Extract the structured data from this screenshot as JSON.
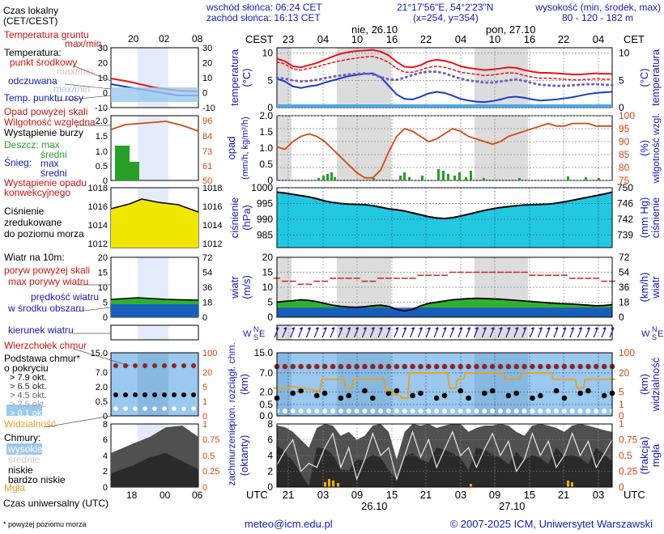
{
  "header": {
    "sunrise": "wschód słońca: 06:24 CET",
    "sunset": "zachód słońca: 16:13 CET",
    "coords": "21°17'56\"E, 54°2'23\"N",
    "grid": "(x=254,  y=354)",
    "altitude_label": "wysokość (min, środek, max)",
    "altitude_values": "80 - 120 - 182 m",
    "legend_time_zone": "Czas lokalny",
    "legend_time_zone_sub": "(CET/CEST)"
  },
  "time_axis": {
    "tz_left": "CEST",
    "tz_right": "CET",
    "top_hours": [
      "23",
      "04",
      "10",
      "16",
      "22",
      "04",
      "10",
      "16",
      "22",
      "04"
    ],
    "day_labels_top": [
      "nie, 26.10",
      "pon, 27.10"
    ],
    "utc_label": "UTC",
    "bottom_hours": [
      "21",
      "03",
      "09",
      "15",
      "21",
      "03",
      "09",
      "15",
      "21",
      "03"
    ],
    "day_labels_bottom": [
      "26.10",
      "27.10"
    ],
    "legend_top_hours": [
      "20",
      "02",
      "08"
    ],
    "legend_bottom_hours": [
      "18",
      "00",
      "06"
    ],
    "legend_utc_title": "Czas uniwersalny (UTC)"
  },
  "legend": {
    "temp_ground": "Temperatura gruntu",
    "temp_ground_sub": "max/min",
    "temp_title": "Temperatura:",
    "temp_mid": "punkt środkowy",
    "temp_maxmin": "max/min",
    "temp_felt": "odczuwana",
    "temp_felt_sub": "max/min",
    "dew": "Temp. punktu rosy",
    "precip_over": "Opad powyżej skali",
    "humidity": "Wilgotność względna",
    "storm": "Wystąpienie burzy",
    "rain": "Deszcz: max",
    "rain_mid": "średni",
    "snow": "Śnieg:",
    "snow_max": "max",
    "snow_mid": "średni",
    "convective": "Wystąpienie opadu",
    "convective_2": "konwekcyjnego",
    "pressure_1": "Ciśnienie",
    "pressure_2": "zredukowane",
    "pressure_3": "do poziomu morza",
    "wind_title": "Wiatr na 10m:",
    "gust_over": "poryw powyżej skali",
    "gust_max": "max porywy wiatru",
    "wind_avg": "prędkość wiatru",
    "wind_avg_2": "w środku obszaru",
    "wind_dir": "kierunek wiatru",
    "cb_top": "Wierzchołek chmur",
    "cloud_base": "Podstawa chmur*",
    "cloud_base_2": "o pokryciu",
    "okt": [
      "> 7.9 okt.",
      "> 6.5 okt.",
      "> 4.5 okt.",
      "> 2.5 okt.",
      "> 0.1 okt."
    ],
    "visibility": "Widzialność",
    "clouds": "Chmury:",
    "cl_high": "wysokie",
    "cl_mid": "średnie",
    "cl_low": "niskie",
    "cl_vlow": "bardzo niskie",
    "fog": "Mgła",
    "footnote": "* powyżej poziomu morza"
  },
  "panel_labels": {
    "temp_left": "temperatura",
    "temp_left_unit": "(°C)",
    "temp_right": "temperatura",
    "temp_right_unit": "(°C)",
    "precip_left": "opad",
    "precip_left_unit": "(mm/h, kg/m²/h)",
    "precip_right": "wilgotność wzgl.",
    "precip_right_unit": "(%)",
    "press_left": "ciśnienie",
    "press_left_unit": "(hPa)",
    "press_right": "ciśnienie",
    "press_right_unit": "(mm Hg)",
    "wind_left": "wiatr",
    "wind_left_unit": "(m/s)",
    "wind_right": "wiatr",
    "wind_right_unit": "(km/h)",
    "dir_left": "WNSE",
    "dir_right": "WNSE",
    "cloud_left": "pion. rozciągł. chm.",
    "cloud_left_unit": "(km)",
    "cloud_right": "widzialność",
    "cloud_right_unit": "(km)",
    "cov_left": "zachmurzenie",
    "cov_left_unit": "(oktanty)",
    "cov_right": "mgła",
    "cov_right_unit": "(frakcja)"
  },
  "footer": {
    "email": "meteo@icm.edu.pl",
    "copyright": "© 2007-2025 ICM, Uniwersytet Warszawski"
  },
  "colors": {
    "temp_red": "#e8141a",
    "temp_blue": "#1e3cc8",
    "dew_purple": "#7060c0",
    "humidity": "#d24a10",
    "rain_green": "#28a028",
    "pressure": "#22c8e0",
    "wind_green": "#30b030",
    "wind_blue": "#1450d2",
    "vis_orange": "#e8a020"
  },
  "chart_data": [
    {
      "type": "line",
      "title": "temperatura",
      "ylabel": "(°C)",
      "ylim": [
        0,
        11
      ],
      "yticks": [
        0,
        5,
        10
      ],
      "series": [
        {
          "name": "temperatura max",
          "values": [
            9.0,
            8.5,
            7.6,
            7.4,
            7.8,
            8.2,
            8.8,
            9.4,
            9.9,
            10.2,
            10.4,
            10.5,
            10.6,
            10.3,
            9.6,
            8.4,
            7.5,
            7.4,
            7.8,
            8.5,
            8.8,
            8.6,
            8.2,
            7.6,
            7.3,
            7.1,
            6.9,
            7.0,
            7.2,
            7.4,
            7.3,
            6.9,
            6.6,
            6.4,
            6.4,
            6.3,
            6.2,
            6.1,
            6.1,
            6.2,
            6.3,
            6.2,
            6.2
          ]
        },
        {
          "name": "punkt środkowy",
          "values": [
            8.4,
            8.0,
            7.1,
            6.9,
            7.2,
            7.5,
            7.9,
            8.3,
            8.6,
            8.9,
            9.1,
            9.3,
            9.4,
            9.0,
            8.3,
            7.2,
            6.5,
            6.5,
            6.9,
            7.4,
            7.6,
            7.4,
            7.0,
            6.5,
            6.3,
            6.1,
            5.9,
            6.0,
            6.2,
            6.4,
            6.3,
            5.9,
            5.6,
            5.4,
            5.4,
            5.3,
            5.2,
            5.1,
            5.1,
            5.2,
            5.3,
            5.2,
            5.2
          ]
        },
        {
          "name": "odczuwana",
          "values": [
            5.3,
            4.8,
            3.9,
            3.6,
            3.9,
            4.1,
            4.6,
            5.0,
            5.4,
            5.8,
            6.0,
            6.2,
            6.3,
            5.6,
            4.0,
            2.4,
            1.6,
            1.5,
            2.0,
            2.6,
            2.9,
            2.7,
            2.2,
            1.6,
            1.3,
            1.1,
            1.0,
            1.2,
            1.5,
            1.9,
            2.0,
            1.8,
            1.5,
            1.3,
            1.4,
            1.5,
            1.7,
            1.9,
            2.2,
            2.5,
            2.7,
            2.8,
            2.9
          ]
        },
        {
          "name": "punkt rosy",
          "values": [
            5.5,
            5.3,
            5.0,
            4.8,
            4.9,
            5.1,
            5.4,
            5.7,
            5.9,
            6.1,
            6.2,
            6.3,
            6.1,
            5.6,
            5.2,
            5.1,
            5.5,
            6.0,
            6.4,
            6.6,
            6.6,
            6.3,
            5.8,
            5.3,
            5.0,
            4.8,
            4.6,
            4.6,
            4.8,
            5.0,
            5.2,
            4.9,
            4.5,
            4.2,
            4.1,
            4.0,
            4.0,
            4.1,
            4.2,
            4.3,
            4.3,
            4.2,
            4.1
          ]
        }
      ]
    },
    {
      "type": "bar",
      "title": "opad",
      "ylabel": "(mm/h, kg/m²/h)",
      "ylim": [
        0,
        2
      ],
      "yticks": [
        0,
        0.5,
        1.0,
        1.5,
        2.0
      ],
      "series": [
        {
          "name": "wilgotność względna",
          "values": [
            88,
            87,
            90,
            92,
            93,
            92,
            90,
            87,
            84,
            81,
            78,
            76,
            76,
            79,
            86,
            92,
            95,
            94,
            92,
            90,
            91,
            93,
            95,
            94,
            92,
            91,
            90,
            89,
            90,
            92,
            93,
            94,
            95,
            96,
            97,
            96,
            96,
            97,
            97,
            97,
            96,
            96,
            96
          ],
          "ylim": [
            75,
            100
          ]
        }
      ]
    },
    {
      "type": "area",
      "title": "ciśnienie",
      "ylabel": "(hPa)",
      "ylim": [
        981,
        1000
      ],
      "yticks": [
        985,
        990,
        995,
        1000
      ],
      "series": [
        {
          "name": "ciśnienie",
          "values": [
            998.6,
            998.3,
            997.9,
            997.5,
            997.1,
            996.5,
            995.8,
            995.3,
            995.0,
            994.8,
            994.7,
            994.6,
            994.3,
            993.8,
            993.3,
            993.0,
            992.6,
            992.0,
            991.4,
            990.8,
            990.4,
            990.2,
            990.5,
            991.0,
            991.6,
            992.2,
            992.8,
            993.3,
            993.7,
            994.0,
            994.3,
            994.5,
            994.6,
            994.7,
            994.8,
            995.1,
            995.5,
            996.0,
            996.5,
            997.0,
            997.5,
            998.0,
            998.6
          ]
        }
      ]
    },
    {
      "type": "line",
      "title": "wiatr",
      "ylabel": "(m/s)",
      "ylim": [
        0,
        20
      ],
      "yticks": [
        0,
        5,
        10,
        15,
        20
      ],
      "series": [
        {
          "name": "max porywy wiatru",
          "values": [
            13,
            12,
            12,
            11,
            11,
            12,
            12,
            13,
            13,
            13,
            13,
            12,
            12,
            13,
            13,
            13,
            13,
            13,
            14,
            14,
            14,
            14,
            15,
            15,
            15,
            15,
            15,
            15,
            15,
            15,
            15,
            15,
            14,
            14,
            14,
            14,
            14,
            13,
            13,
            13,
            13,
            12,
            12
          ]
        },
        {
          "name": "prędkość wiatru",
          "values": [
            5.0,
            5.3,
            5.5,
            5.8,
            5.6,
            5.2,
            4.6,
            4.0,
            3.6,
            3.4,
            3.3,
            3.5,
            3.8,
            4.0,
            3.6,
            2.6,
            2.1,
            2.6,
            3.8,
            4.6,
            5.0,
            5.4,
            5.8,
            6.0,
            6.2,
            6.3,
            6.2,
            6.1,
            6.0,
            5.8,
            5.6,
            5.4,
            5.2,
            5.0,
            4.8,
            4.6,
            4.5,
            4.4,
            4.2,
            4.0,
            3.8,
            3.9,
            4.2
          ]
        }
      ]
    },
    {
      "type": "scatter",
      "title": "pion. rozciągł. chm.",
      "ylabel": "(km)",
      "ylim": [
        0,
        15
      ],
      "yticks": [
        0.0,
        0.5,
        2.0,
        7.0,
        15.0
      ],
      "series": [
        {
          "name": "widzialność",
          "values": [
            8,
            8,
            9,
            8,
            7,
            6,
            15,
            15,
            15,
            8,
            15,
            15,
            15,
            15,
            6,
            4,
            3,
            20,
            20,
            20,
            20,
            20,
            8,
            15,
            20,
            20,
            20,
            20,
            20,
            15,
            15,
            20,
            20,
            20,
            20,
            15,
            15,
            15,
            8,
            15,
            15,
            15,
            15
          ],
          "ylim": [
            0,
            100
          ]
        }
      ]
    },
    {
      "type": "area",
      "title": "zachmurzenie",
      "ylabel": "(oktanty)",
      "ylim": [
        0,
        8
      ],
      "yticks": [
        0,
        2,
        4,
        6,
        8
      ],
      "series": [
        {
          "name": "zachmurzenie ogólne",
          "values": [
            7.8,
            7.6,
            7.0,
            6.0,
            5.0,
            7.5,
            8.0,
            7.8,
            6.5,
            7.0,
            6.0,
            6.5,
            7.8,
            8.0,
            7.0,
            3.5,
            7.0,
            8.0,
            7.8,
            8.0,
            7.5,
            7.8,
            8.0,
            8.0,
            7.0,
            7.5,
            7.8,
            7.8,
            8.0,
            7.8,
            7.0,
            6.5,
            7.8,
            8.0,
            7.8,
            7.5,
            7.0,
            7.8,
            8.0,
            7.8,
            7.5,
            7.2,
            7.0
          ]
        }
      ]
    }
  ]
}
